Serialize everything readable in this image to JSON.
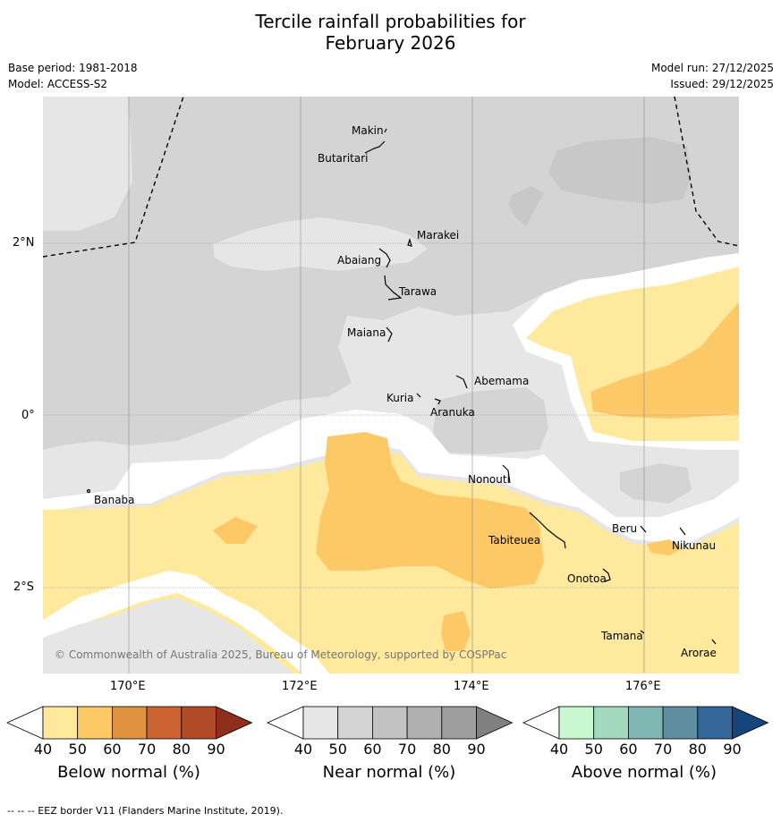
{
  "title_line1": "Tercile rainfall probabilities for",
  "title_line2": "February 2026",
  "meta": {
    "base_period": "Base period: 1981-2018",
    "model": "Model: ACCESS-S2",
    "model_run": "Model run: 27/12/2025",
    "issued": "Issued: 29/12/2025"
  },
  "map": {
    "lat_ticks": [
      "2°N",
      "0°",
      "2°S"
    ],
    "lon_ticks": [
      "170°E",
      "172°E",
      "174°E",
      "176°E"
    ],
    "islands": [
      "Makin",
      "Butaritari",
      "Marakei",
      "Abaiang",
      "Tarawa",
      "Maiana",
      "Abemama",
      "Kuria",
      "Aranuka",
      "Nonouti",
      "Banaba",
      "Tabiteuea",
      "Beru",
      "Nikunau",
      "Onotoa",
      "Tamana",
      "Arorae"
    ],
    "copyright": "© Commonwealth of Australia 2025, Bureau of Meteorology, supported by COSPPac"
  },
  "colorbars": [
    {
      "label": "Below normal (%)",
      "ticks": [
        "40",
        "50",
        "60",
        "70",
        "80",
        "90"
      ],
      "colors": [
        "#ffffff",
        "#fee99d",
        "#fdc966",
        "#e09243",
        "#cc6331",
        "#b04a27",
        "#8f2f1b"
      ]
    },
    {
      "label": "Near normal (%)",
      "ticks": [
        "40",
        "50",
        "60",
        "70",
        "80",
        "90"
      ],
      "colors": [
        "#ffffff",
        "#e6e6e6",
        "#d4d4d4",
        "#c2c2c2",
        "#b0b0b0",
        "#9e9e9e",
        "#808080"
      ]
    },
    {
      "label": "Above normal (%)",
      "ticks": [
        "40",
        "50",
        "60",
        "70",
        "80",
        "90"
      ],
      "colors": [
        "#ffffff",
        "#c7f8d0",
        "#a2d8bd",
        "#7fb6b2",
        "#5e8ea0",
        "#336699",
        "#15457a"
      ]
    }
  ],
  "footer": "--  --  -- EEZ border V11 (Flanders Marine Institute, 2019)."
}
